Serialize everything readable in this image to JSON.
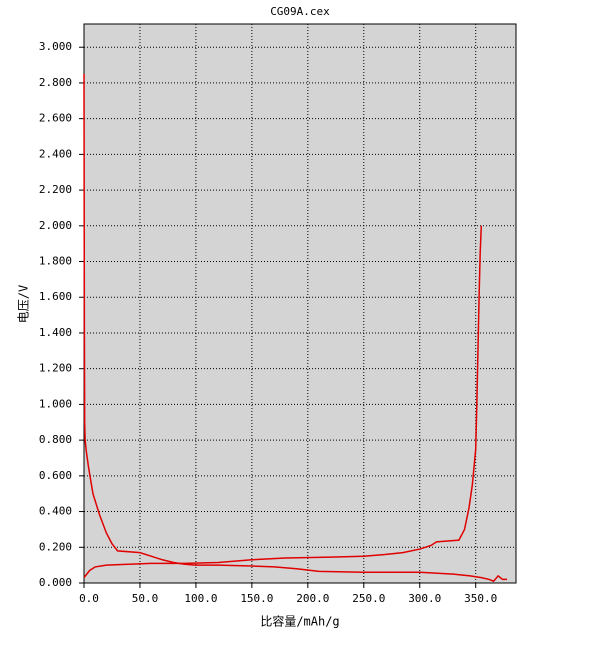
{
  "chart_data": {
    "type": "line",
    "title": "CG09A.cex",
    "x_label": "比容量/mAh/g",
    "y_label": "电压/V",
    "background": "#d4d4d4",
    "grid": true,
    "xlim": [
      0,
      386
    ],
    "ylim": [
      0,
      3.13
    ],
    "xticks": [
      {
        "value": 0,
        "label": "0.0"
      },
      {
        "value": 50,
        "label": "50.0"
      },
      {
        "value": 100,
        "label": "100.0"
      },
      {
        "value": 150,
        "label": "150.0"
      },
      {
        "value": 200,
        "label": "200.0"
      },
      {
        "value": 250,
        "label": "250.0"
      },
      {
        "value": 300,
        "label": "300.0"
      },
      {
        "value": 350,
        "label": "350.0"
      }
    ],
    "yticks": [
      {
        "value": 0,
        "label": "0.000"
      },
      {
        "value": 0.2,
        "label": "0.200"
      },
      {
        "value": 0.4,
        "label": "0.400"
      },
      {
        "value": 0.6,
        "label": "0.600"
      },
      {
        "value": 0.8,
        "label": "0.800"
      },
      {
        "value": 1.0,
        "label": "1.000"
      },
      {
        "value": 1.2,
        "label": "1.200"
      },
      {
        "value": 1.4,
        "label": "1.400"
      },
      {
        "value": 1.6,
        "label": "1.600"
      },
      {
        "value": 1.8,
        "label": "1.800"
      },
      {
        "value": 2.0,
        "label": "2.000"
      },
      {
        "value": 2.2,
        "label": "2.200"
      },
      {
        "value": 2.4,
        "label": "2.400"
      },
      {
        "value": 2.6,
        "label": "2.600"
      },
      {
        "value": 2.8,
        "label": "2.800"
      },
      {
        "value": 3.0,
        "label": "3.000"
      }
    ],
    "series": [
      {
        "color": "#e00000",
        "x": [
          0,
          0.3,
          0.6,
          1,
          2,
          4,
          8,
          14,
          20,
          25,
          30,
          40,
          50,
          60,
          70,
          80,
          90,
          100,
          120,
          150,
          170,
          190,
          210,
          250,
          300,
          330,
          345,
          355,
          362,
          366,
          370,
          372,
          374,
          378
        ],
        "values": [
          2.85,
          1.5,
          0.9,
          0.8,
          0.74,
          0.65,
          0.5,
          0.38,
          0.28,
          0.22,
          0.18,
          0.175,
          0.17,
          0.15,
          0.13,
          0.115,
          0.105,
          0.1,
          0.1,
          0.095,
          0.09,
          0.08,
          0.065,
          0.06,
          0.06,
          0.05,
          0.04,
          0.03,
          0.02,
          0.01,
          0.04,
          0.03,
          0.02,
          0.02
        ]
      },
      {
        "color": "#e00000",
        "x": [
          0,
          5,
          10,
          20,
          40,
          60,
          90,
          120,
          150,
          180,
          220,
          250,
          270,
          285,
          300,
          310,
          315,
          325,
          335,
          340,
          344,
          347,
          350,
          351,
          352,
          353,
          354,
          355
        ],
        "values": [
          0.03,
          0.07,
          0.09,
          0.1,
          0.105,
          0.11,
          0.11,
          0.115,
          0.13,
          0.14,
          0.145,
          0.15,
          0.16,
          0.17,
          0.19,
          0.21,
          0.23,
          0.235,
          0.24,
          0.3,
          0.42,
          0.55,
          0.75,
          1.0,
          1.3,
          1.6,
          1.85,
          2.0
        ]
      }
    ]
  }
}
